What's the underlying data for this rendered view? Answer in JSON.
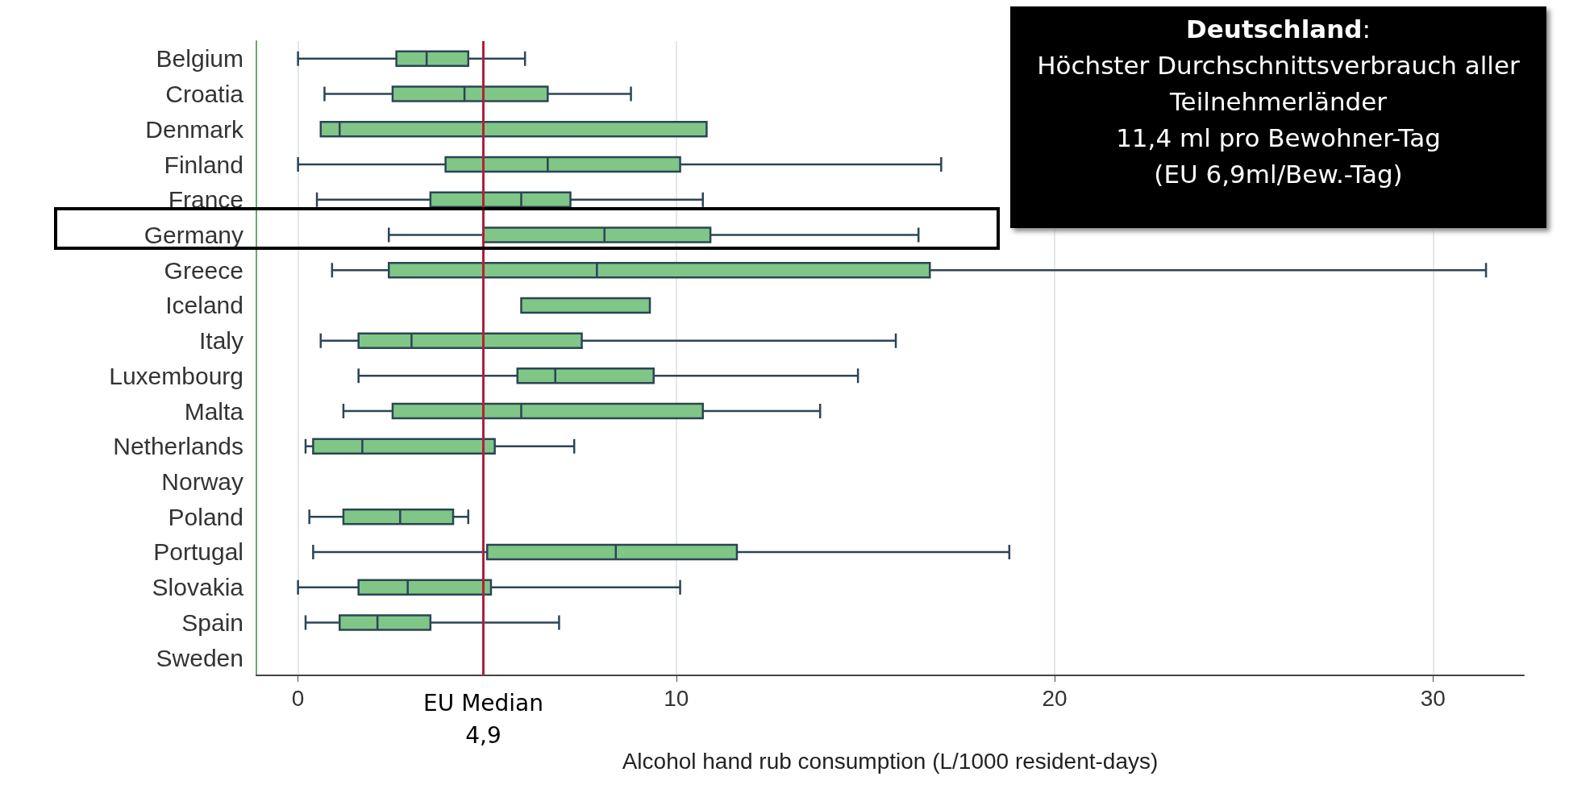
{
  "chart_data": {
    "type": "box",
    "orientation": "horizontal",
    "xlabel": "Alcohol hand rub consumption (L/1000 resident-days)",
    "categories": [
      "Belgium",
      "Croatia",
      "Denmark",
      "Finland",
      "France",
      "Germany",
      "Greece",
      "Iceland",
      "Italy",
      "Luxembourg",
      "Malta",
      "Netherlands",
      "Norway",
      "Poland",
      "Portugal",
      "Slovakia",
      "Spain",
      "Sweden"
    ],
    "color": "#80c687",
    "boxes": [
      {
        "low": 0,
        "q1": 2.6,
        "median": 3.4,
        "q3": 4.5,
        "high": 6.0
      },
      {
        "low": 0.7,
        "q1": 2.5,
        "median": 4.4,
        "q3": 6.6,
        "high": 8.8
      },
      {
        "low": 0.6,
        "q1": 0.6,
        "median": 1.1,
        "q3": 10.8,
        "high": 10.8
      },
      {
        "low": 0,
        "q1": 3.9,
        "median": 6.6,
        "q3": 10.1,
        "high": 17.0
      },
      {
        "low": 0.5,
        "q1": 3.5,
        "median": 5.9,
        "q3": 7.2,
        "high": 10.7
      },
      {
        "low": 2.4,
        "q1": 4.9,
        "median": 8.1,
        "q3": 10.9,
        "high": 16.4
      },
      {
        "low": 0.9,
        "q1": 2.4,
        "median": 7.9,
        "q3": 16.7,
        "high": 31.4
      },
      {
        "low": 5.9,
        "q1": 5.9,
        "median": 5.9,
        "q3": 9.3,
        "high": 9.3
      },
      {
        "low": 0.6,
        "q1": 1.6,
        "median": 3.0,
        "q3": 7.5,
        "high": 15.8
      },
      {
        "low": 1.6,
        "q1": 5.8,
        "median": 6.8,
        "q3": 9.4,
        "high": 14.8
      },
      {
        "low": 1.2,
        "q1": 2.5,
        "median": 5.9,
        "q3": 10.7,
        "high": 13.8
      },
      {
        "low": 0.2,
        "q1": 0.4,
        "median": 1.7,
        "q3": 5.2,
        "high": 7.3
      },
      null,
      {
        "low": 0.3,
        "q1": 1.2,
        "median": 2.7,
        "q3": 4.1,
        "high": 4.5
      },
      {
        "low": 0.4,
        "q1": 5.0,
        "median": 8.4,
        "q3": 11.6,
        "high": 18.8
      },
      {
        "low": 0,
        "q1": 1.6,
        "median": 2.9,
        "q3": 5.1,
        "high": 10.1
      },
      {
        "low": 0.2,
        "q1": 1.1,
        "median": 2.1,
        "q3": 3.5,
        "high": 6.9
      },
      null
    ],
    "xlim": [
      -1.1,
      32.4
    ],
    "xticks": [
      0,
      10,
      20,
      30
    ],
    "grid": "x",
    "ref_lines": [
      {
        "axis": "x",
        "value": 4.9,
        "label": "EU Median\n4,9",
        "color": "#b0203a"
      }
    ],
    "annotations": [
      "Deutschland:\nHöchster Durchschnittsverbrauch aller Teilnehmerländer\n11,4 ml pro Bewohner-Tag\n(EU 6,9ml/Bew.-Tag)"
    ]
  }
}
